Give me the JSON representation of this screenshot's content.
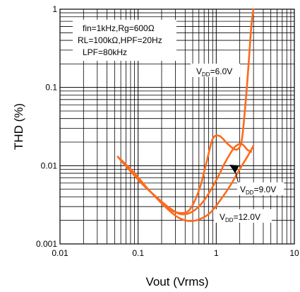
{
  "chart_data": {
    "type": "line",
    "xlabel": "Vout (Vrms)",
    "ylabel": "THD (%)",
    "xscale": "log",
    "yscale": "log",
    "xlim": [
      0.01,
      10
    ],
    "ylim": [
      0.001,
      1
    ],
    "grid": true,
    "x_ticks": [
      "0.01",
      "0.1",
      "1",
      "10"
    ],
    "y_ticks": [
      "0.001",
      "0.01",
      "0.1",
      "1"
    ],
    "conditions": [
      "fin=1kHz,Rg=600Ω",
      "RL=100kΩ,HPF=20Hz",
      "LPF=80kHz"
    ],
    "series_color": "#ff6a1a",
    "series": [
      {
        "name": "VDD=6.0V",
        "label_main": "V",
        "label_sub": "DD",
        "label_value": "=6.0V",
        "x": [
          0.055,
          0.08,
          0.12,
          0.18,
          0.25,
          0.33,
          0.45,
          0.6,
          0.75,
          0.9,
          1.1,
          1.4,
          1.8,
          2.1,
          2.3,
          2.5,
          2.7,
          2.85,
          3.0
        ],
        "y": [
          0.013,
          0.0085,
          0.0055,
          0.0038,
          0.0028,
          0.0025,
          0.0027,
          0.0048,
          0.011,
          0.022,
          0.024,
          0.019,
          0.016,
          0.02,
          0.045,
          0.12,
          0.35,
          0.7,
          1.0
        ]
      },
      {
        "name": "VDD=9.0V",
        "label_main": "V",
        "label_sub": "DD",
        "label_value": "=9.0V",
        "x": [
          0.055,
          0.08,
          0.12,
          0.18,
          0.25,
          0.35,
          0.5,
          0.7,
          1.0,
          1.3,
          1.7,
          2.1,
          2.5,
          2.8
        ],
        "y": [
          0.013,
          0.0085,
          0.0055,
          0.0038,
          0.0029,
          0.0024,
          0.0026,
          0.0036,
          0.0065,
          0.011,
          0.017,
          0.019,
          0.016,
          0.015
        ]
      },
      {
        "name": "VDD=12.0V",
        "label_main": "V",
        "label_sub": "DD",
        "label_value": "=12.0V",
        "x": [
          0.06,
          0.09,
          0.13,
          0.2,
          0.3,
          0.4,
          0.55,
          0.8,
          1.1,
          1.5,
          2.0,
          2.5,
          3.0
        ],
        "y": [
          0.012,
          0.008,
          0.0052,
          0.0033,
          0.0023,
          0.002,
          0.002,
          0.0024,
          0.0035,
          0.0055,
          0.009,
          0.013,
          0.018
        ]
      }
    ]
  }
}
